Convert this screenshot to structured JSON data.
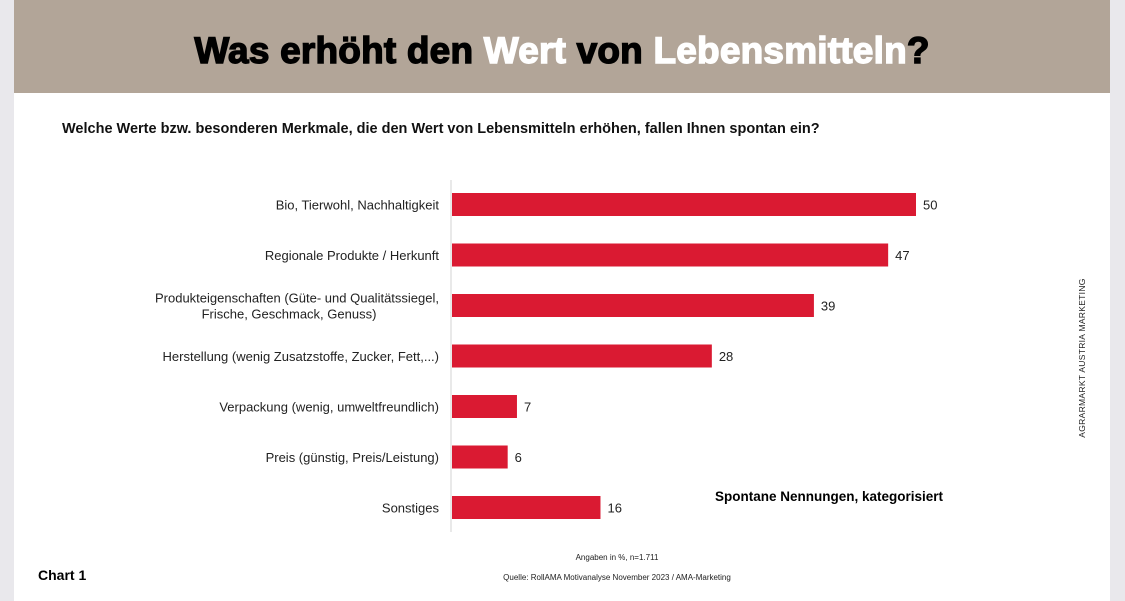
{
  "header": {
    "title_parts": [
      {
        "text": "Was erhöht den ",
        "highlight": false
      },
      {
        "text": "Wert",
        "highlight": true
      },
      {
        "text": " von ",
        "highlight": false
      },
      {
        "text": "Lebensmitteln",
        "highlight": true
      },
      {
        "text": "?",
        "highlight": false
      }
    ]
  },
  "question": "Welche Werte bzw. besonderen Merkmale, die den Wert von Lebensmitteln erhöhen, fallen Ihnen spontan ein?",
  "annotation": "Spontane Nennungen, kategorisiert",
  "vertical_credit": "AGRARMARKT AUSTRIA MARKETING",
  "chart_label": "Chart 1",
  "footnote": "Angaben in %, n=1.711",
  "source": "Quelle: RollAMA Motivanalyse November 2023 / AMA-Marketing",
  "colors": {
    "header_bg": "#b2a598",
    "bar": "#da1a32",
    "title_highlight": "#ffffff"
  },
  "chart_data": {
    "type": "bar",
    "orientation": "horizontal",
    "title": "Was erhöht den Wert von Lebensmitteln?",
    "subtitle": "Welche Werte bzw. besonderen Merkmale, die den Wert von Lebensmitteln erhöhen, fallen Ihnen spontan ein?",
    "categories": [
      [
        "Bio, Tierwohl, Nachhaltigkeit"
      ],
      [
        "Regionale Produkte / Herkunft"
      ],
      [
        "Produkteigenschaften (Güte- und Qualitätssiegel,",
        "Frische, Geschmack, Genuss)"
      ],
      [
        "Herstellung (wenig Zusatzstoffe, Zucker, Fett,...)"
      ],
      [
        "Verpackung (wenig, umweltfreundlich)"
      ],
      [
        "Preis (günstig, Preis/Leistung)"
      ],
      [
        "Sonstiges"
      ]
    ],
    "values": [
      50,
      47,
      39,
      28,
      7,
      6,
      16
    ],
    "xlabel": "",
    "ylabel": "",
    "unit": "%",
    "xlim": [
      0,
      50
    ],
    "grid": false,
    "legend": "none",
    "data_labels": true
  }
}
